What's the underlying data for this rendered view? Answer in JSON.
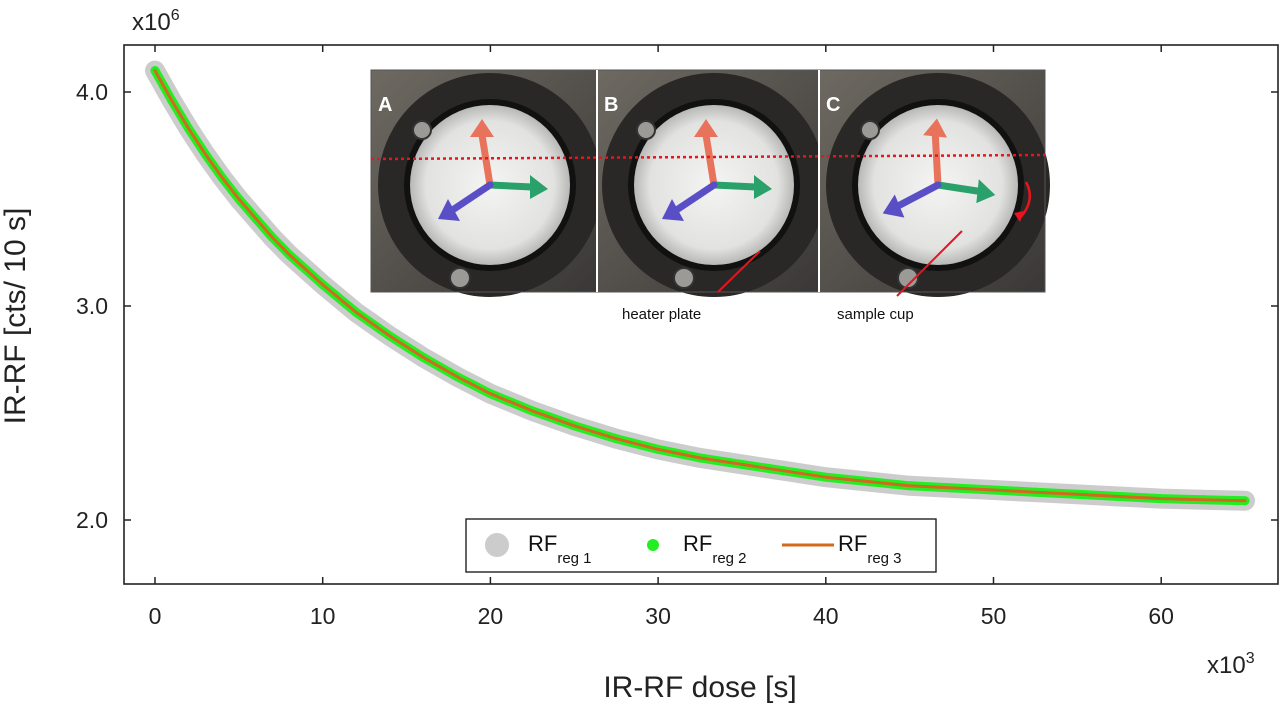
{
  "chart_data": {
    "type": "line",
    "title": "",
    "xlabel": "IR-RF dose [s]",
    "ylabel": "IR-RF [cts/ 10 s]",
    "x_multiplier": "x10",
    "x_multiplier_exp": "3",
    "y_multiplier": "x10",
    "y_multiplier_exp": "6",
    "xlim": [
      -2,
      67.5
    ],
    "ylim": [
      1.72,
      4.22
    ],
    "xticks": [
      0,
      10,
      20,
      30,
      40,
      50,
      60
    ],
    "xtick_labels": [
      "0",
      "10",
      "20",
      "30",
      "40",
      "50",
      "60"
    ],
    "yticks": [
      2.0,
      3.0,
      4.0
    ],
    "ytick_labels": [
      "2.0",
      "3.0",
      "4.0"
    ],
    "grid": false,
    "legend_position": "bottom-center",
    "x": [
      0,
      0.5,
      1,
      2,
      3,
      4,
      5,
      6,
      7,
      8,
      9,
      10,
      12,
      14,
      16,
      18,
      20,
      22.5,
      25,
      27.5,
      30,
      32.5,
      35,
      37.5,
      40,
      42.5,
      45,
      47.5,
      50,
      52.5,
      55,
      57.5,
      60,
      62.5,
      65
    ],
    "series": [
      {
        "name": "RF",
        "name_sub": "reg 1",
        "color": "#cccccc",
        "marker": "large-circle",
        "values": [
          4.1,
          4.03,
          3.96,
          3.83,
          3.71,
          3.6,
          3.5,
          3.41,
          3.32,
          3.24,
          3.17,
          3.1,
          2.97,
          2.86,
          2.76,
          2.67,
          2.59,
          2.51,
          2.44,
          2.38,
          2.33,
          2.29,
          2.26,
          2.23,
          2.2,
          2.18,
          2.16,
          2.15,
          2.14,
          2.13,
          2.12,
          2.11,
          2.1,
          2.095,
          2.09
        ]
      },
      {
        "name": "RF",
        "name_sub": "reg 2",
        "color": "#22ee22",
        "marker": "small-circle",
        "values": [
          4.1,
          4.03,
          3.96,
          3.83,
          3.71,
          3.6,
          3.5,
          3.41,
          3.32,
          3.24,
          3.17,
          3.1,
          2.97,
          2.86,
          2.76,
          2.67,
          2.59,
          2.51,
          2.44,
          2.38,
          2.33,
          2.29,
          2.26,
          2.23,
          2.2,
          2.18,
          2.16,
          2.15,
          2.14,
          2.13,
          2.12,
          2.11,
          2.1,
          2.095,
          2.09
        ]
      },
      {
        "name": "RF",
        "name_sub": "reg 3",
        "color": "#d2691e",
        "marker": "line",
        "values": [
          4.1,
          4.03,
          3.96,
          3.83,
          3.71,
          3.6,
          3.5,
          3.41,
          3.32,
          3.24,
          3.17,
          3.1,
          2.97,
          2.86,
          2.76,
          2.67,
          2.59,
          2.51,
          2.44,
          2.38,
          2.33,
          2.29,
          2.26,
          2.23,
          2.2,
          2.18,
          2.16,
          2.15,
          2.14,
          2.13,
          2.12,
          2.11,
          2.1,
          2.095,
          2.09
        ]
      }
    ],
    "inset": {
      "panels": [
        "A",
        "B",
        "C"
      ],
      "callouts": [
        "heater plate",
        "sample cup"
      ],
      "marker_color": "#e8141e"
    }
  }
}
